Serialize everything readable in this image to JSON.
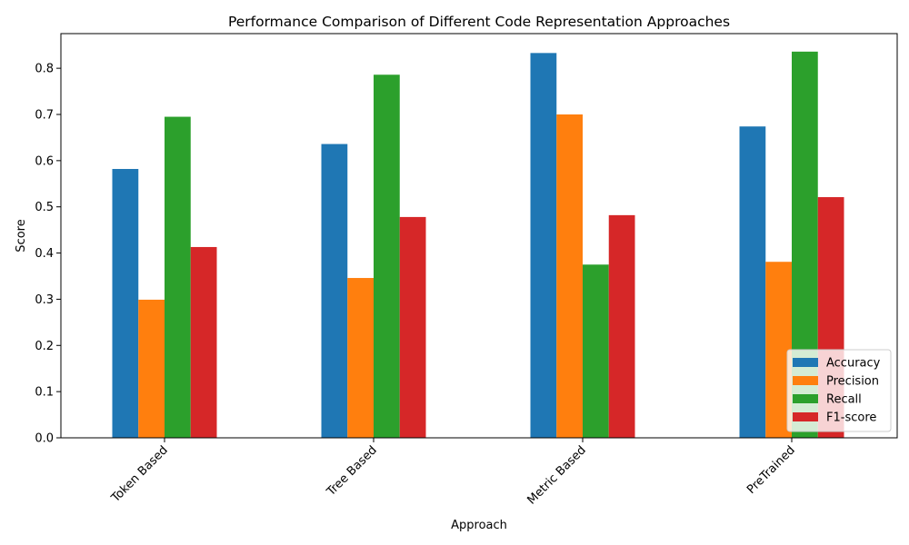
{
  "chart_data": {
    "type": "bar",
    "title": "Performance Comparison of Different Code Representation Approaches",
    "xlabel": "Approach",
    "ylabel": "Score",
    "categories": [
      "Token Based",
      "Tree Based",
      "Metric Based",
      "PreTrained"
    ],
    "series": [
      {
        "name": "Accuracy",
        "color": "#1f77b4",
        "values": [
          0.582,
          0.636,
          0.833,
          0.674
        ]
      },
      {
        "name": "Precision",
        "color": "#ff7f0e",
        "values": [
          0.299,
          0.346,
          0.7,
          0.381
        ]
      },
      {
        "name": "Recall",
        "color": "#2ca02c",
        "values": [
          0.695,
          0.786,
          0.375,
          0.836
        ]
      },
      {
        "name": "F1-score",
        "color": "#d62728",
        "values": [
          0.413,
          0.478,
          0.482,
          0.521
        ]
      }
    ],
    "ylim": [
      0,
      0.875
    ],
    "yticks": [
      "0.0",
      "0.1",
      "0.2",
      "0.3",
      "0.4",
      "0.5",
      "0.6",
      "0.7",
      "0.8"
    ],
    "grid": false,
    "legend_position": "bottom-right"
  }
}
